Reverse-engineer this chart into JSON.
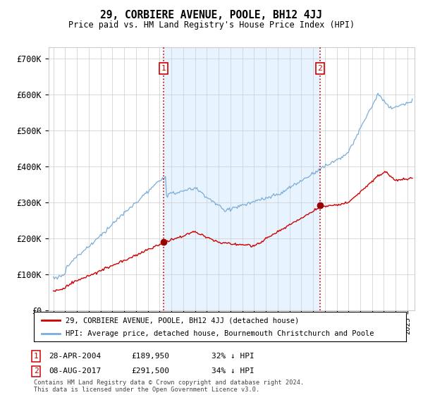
{
  "title": "29, CORBIERE AVENUE, POOLE, BH12 4JJ",
  "subtitle": "Price paid vs. HM Land Registry's House Price Index (HPI)",
  "red_label": "29, CORBIERE AVENUE, POOLE, BH12 4JJ (detached house)",
  "blue_label": "HPI: Average price, detached house, Bournemouth Christchurch and Poole",
  "annotation1": {
    "num": "1",
    "date": "28-APR-2004",
    "price": "£189,950",
    "pct": "32% ↓ HPI",
    "x_year": 2004.33
  },
  "annotation2": {
    "num": "2",
    "date": "08-AUG-2017",
    "price": "£291,500",
    "pct": "34% ↓ HPI",
    "x_year": 2017.58
  },
  "ylabel_ticks": [
    "£0",
    "£100K",
    "£200K",
    "£300K",
    "£400K",
    "£500K",
    "£600K",
    "£700K"
  ],
  "ytick_values": [
    0,
    100000,
    200000,
    300000,
    400000,
    500000,
    600000,
    700000
  ],
  "ylim": [
    0,
    730000
  ],
  "xlim_start": 1994.6,
  "xlim_end": 2025.6,
  "footer": "Contains HM Land Registry data © Crown copyright and database right 2024.\nThis data is licensed under the Open Government Licence v3.0.",
  "red_color": "#cc0000",
  "blue_color": "#7aadda",
  "blue_fill_color": "#ddeeff",
  "grid_color": "#cccccc",
  "vline_color": "#cc0000",
  "background_color": "#ffffff",
  "dot_color": "#990000"
}
